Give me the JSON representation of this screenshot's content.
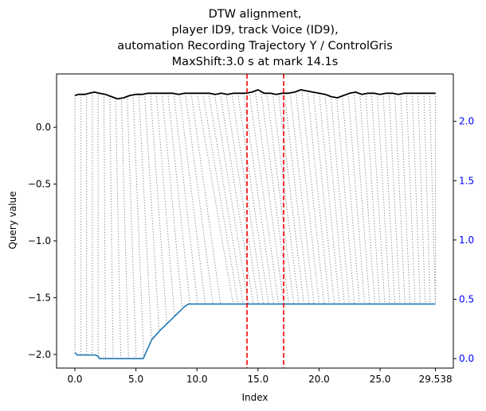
{
  "chart_data": {
    "type": "line",
    "title_lines": [
      "DTW alignment,",
      "player ID9, track Voice (ID9),",
      "automation Recording Trajectory Y / ControlGris",
      "MaxShift:3.0 s at mark 14.1s"
    ],
    "xlabel": "Index",
    "ylabel": "Query value",
    "xlim": [
      -1.5,
      31.0
    ],
    "ylim": [
      -2.12,
      0.47
    ],
    "y2lim": [
      -0.08,
      2.4
    ],
    "x_ticks": [
      {
        "v": 0.0,
        "label": "0.0"
      },
      {
        "v": 5.0,
        "label": "5.0"
      },
      {
        "v": 10.0,
        "label": "10.0"
      },
      {
        "v": 15.0,
        "label": "15.0"
      },
      {
        "v": 20.0,
        "label": "20.0"
      },
      {
        "v": 25.0,
        "label": "25.0"
      },
      {
        "v": 29.538,
        "label": "29.538"
      }
    ],
    "y_ticks": [
      {
        "v": 0.0,
        "label": "0.0"
      },
      {
        "v": -0.5,
        "label": "−0.5"
      },
      {
        "v": -1.0,
        "label": "−1.0"
      },
      {
        "v": -1.5,
        "label": "−1.5"
      },
      {
        "v": -2.0,
        "label": "−2.0"
      }
    ],
    "y2_ticks": [
      {
        "v": 0.0,
        "label": "0.0"
      },
      {
        "v": 0.5,
        "label": "0.5"
      },
      {
        "v": 1.0,
        "label": "1.0"
      },
      {
        "v": 1.5,
        "label": "1.5"
      },
      {
        "v": 2.0,
        "label": "2.0"
      }
    ],
    "vlines": [
      14.1,
      17.1
    ],
    "series": [
      {
        "axis": "left",
        "color": "#000000",
        "x": [
          0.0,
          0.3,
          0.8,
          1.2,
          1.6,
          2.0,
          2.5,
          3.0,
          3.5,
          4.0,
          4.5,
          5.0,
          5.5,
          6.0,
          6.5,
          7.0,
          7.5,
          8.0,
          8.5,
          9.0,
          9.5,
          10.0,
          10.5,
          11.0,
          11.5,
          12.0,
          12.5,
          13.0,
          13.5,
          14.0,
          14.5,
          15.0,
          15.5,
          16.0,
          16.5,
          17.0,
          17.5,
          18.0,
          18.5,
          19.0,
          19.5,
          20.0,
          20.5,
          21.0,
          21.5,
          22.0,
          22.5,
          23.0,
          23.5,
          24.0,
          24.5,
          25.0,
          25.5,
          26.0,
          26.5,
          27.0,
          27.5,
          28.0,
          28.5,
          29.0,
          29.538
        ],
        "y": [
          0.28,
          0.29,
          0.29,
          0.3,
          0.31,
          0.3,
          0.29,
          0.27,
          0.25,
          0.26,
          0.28,
          0.29,
          0.29,
          0.3,
          0.3,
          0.3,
          0.3,
          0.3,
          0.29,
          0.3,
          0.3,
          0.3,
          0.3,
          0.3,
          0.29,
          0.3,
          0.29,
          0.3,
          0.3,
          0.3,
          0.31,
          0.33,
          0.3,
          0.3,
          0.29,
          0.3,
          0.3,
          0.31,
          0.33,
          0.32,
          0.31,
          0.3,
          0.29,
          0.27,
          0.26,
          0.28,
          0.3,
          0.31,
          0.29,
          0.3,
          0.3,
          0.29,
          0.3,
          0.3,
          0.29,
          0.3,
          0.3,
          0.3,
          0.3,
          0.3,
          0.3
        ]
      },
      {
        "axis": "right",
        "color": "#1f77b4",
        "x": [
          0.0,
          0.2,
          1.7,
          1.9,
          2.0,
          5.0,
          5.6,
          6.3,
          7.0,
          8.0,
          9.0,
          9.3,
          29.538
        ],
        "y": [
          0.05,
          0.03,
          0.03,
          0.02,
          0.0,
          0.0,
          0.0,
          0.16,
          0.24,
          0.34,
          0.44,
          0.46,
          0.46
        ]
      }
    ]
  }
}
